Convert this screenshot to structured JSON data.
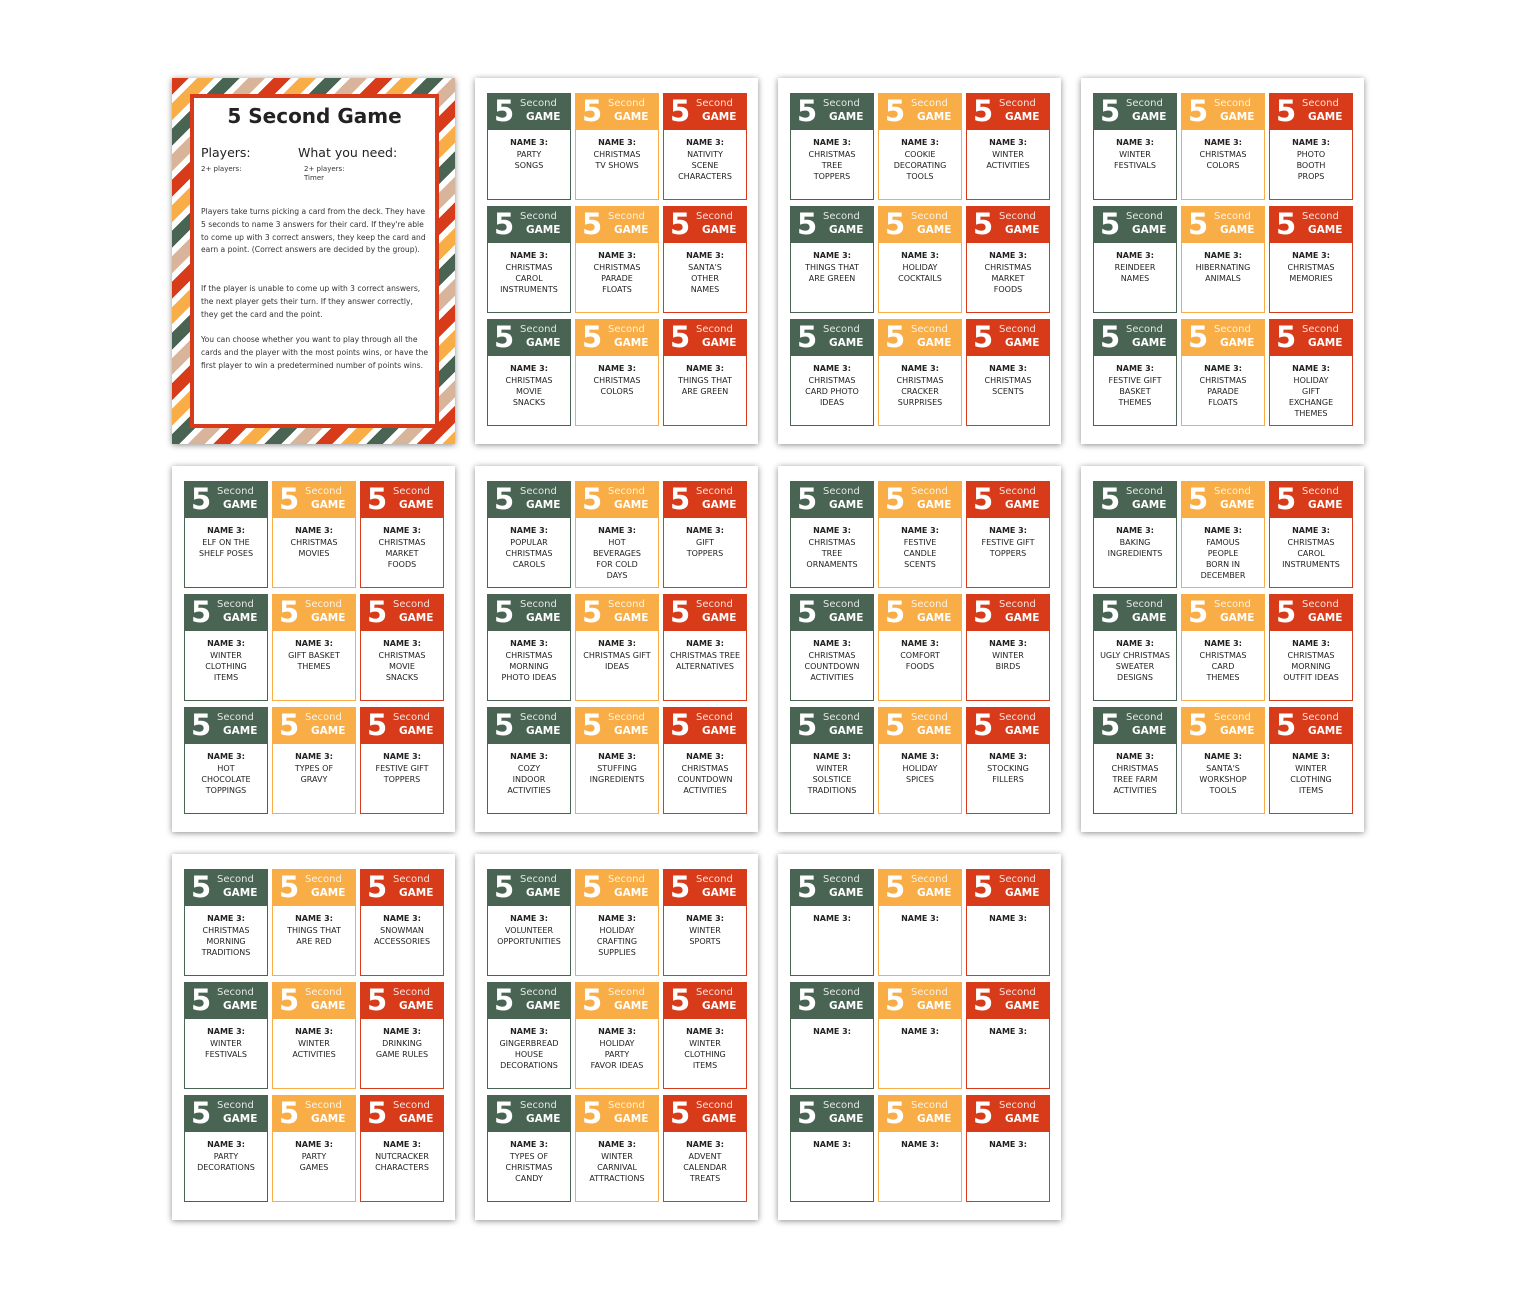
{
  "badge": {
    "number": "5",
    "word1": "Second",
    "word2": "GAME"
  },
  "rules_page": {
    "title": "5 Second Game",
    "players_label": "Players:",
    "players_value": "2+ players:",
    "need_label": "What you need:",
    "need_items": [
      "2+ players:",
      "Timer"
    ],
    "paragraphs": [
      "Players take turns picking a card from the deck. They have 5 seconds to  name 3 answers for their card. If they're able to come up with 3 correct answers, they keep the card and earn a point. (Correct answers are decided by the group).",
      "If the player is unable to come up with 3 correct answers, the next player gets their turn. If they answer correctly, they get the card and the point.",
      "You can choose whether you want to play through all the cards and the player with the most points wins, or have the first player to win a predetermined number of points wins."
    ]
  },
  "card_pages": [
    {
      "cards": [
        {
          "prompt": "NAME 3:",
          "topic": [
            "PARTY",
            "SONGS"
          ]
        },
        {
          "prompt": "NAME 3:",
          "topic": [
            "CHRISTMAS",
            "TV SHOWS"
          ]
        },
        {
          "prompt": "NAME 3:",
          "topic": [
            "NATIVITY",
            "SCENE",
            "CHARACTERS"
          ]
        },
        {
          "prompt": "NAME 3:",
          "topic": [
            "CHRISTMAS",
            "CAROL",
            "INSTRUMENTS"
          ]
        },
        {
          "prompt": "NAME 3:",
          "topic": [
            "CHRISTMAS",
            "PARADE",
            "FLOATS"
          ]
        },
        {
          "prompt": "NAME 3:",
          "topic": [
            "SANTA'S",
            "OTHER",
            "NAMES"
          ]
        },
        {
          "prompt": "NAME 3:",
          "topic": [
            "CHRISTMAS",
            "MOVIE",
            "SNACKS"
          ]
        },
        {
          "prompt": "NAME 3:",
          "topic": [
            "CHRISTMAS",
            "COLORS"
          ]
        },
        {
          "prompt": "NAME 3:",
          "topic": [
            "THINGS THAT",
            "ARE GREEN"
          ]
        }
      ]
    },
    {
      "cards": [
        {
          "prompt": "NAME 3:",
          "topic": [
            "CHRISTMAS",
            "TREE",
            "TOPPERS"
          ]
        },
        {
          "prompt": "NAME 3:",
          "topic": [
            "COOKIE",
            "DECORATING",
            "TOOLS"
          ]
        },
        {
          "prompt": "NAME 3:",
          "topic": [
            "WINTER",
            "ACTIVITIES"
          ]
        },
        {
          "prompt": "NAME 3:",
          "topic": [
            "THINGS THAT",
            "ARE GREEN"
          ]
        },
        {
          "prompt": "NAME 3:",
          "topic": [
            "HOLIDAY",
            "COCKTAILS"
          ]
        },
        {
          "prompt": "NAME 3:",
          "topic": [
            "CHRISTMAS",
            "MARKET",
            "FOODS"
          ]
        },
        {
          "prompt": "NAME 3:",
          "topic": [
            "CHRISTMAS",
            "CARD PHOTO",
            "IDEAS"
          ]
        },
        {
          "prompt": "NAME 3:",
          "topic": [
            "CHRISTMAS",
            "CRACKER",
            "SURPRISES"
          ]
        },
        {
          "prompt": "NAME 3:",
          "topic": [
            "CHRISTMAS",
            "SCENTS"
          ]
        }
      ]
    },
    {
      "cards": [
        {
          "prompt": "NAME 3:",
          "topic": [
            "WINTER",
            "FESTIVALS"
          ]
        },
        {
          "prompt": "NAME 3:",
          "topic": [
            "CHRISTMAS",
            "COLORS"
          ]
        },
        {
          "prompt": "NAME 3:",
          "topic": [
            "PHOTO",
            "BOOTH",
            "PROPS"
          ]
        },
        {
          "prompt": "NAME 3:",
          "topic": [
            "REINDEER",
            "NAMES"
          ]
        },
        {
          "prompt": "NAME 3:",
          "topic": [
            "HIBERNATING",
            "ANIMALS"
          ]
        },
        {
          "prompt": "NAME 3:",
          "topic": [
            "CHRISTMAS",
            "MEMORIES"
          ]
        },
        {
          "prompt": "NAME 3:",
          "topic": [
            "FESTIVE GIFT",
            "BASKET",
            "THEMES"
          ]
        },
        {
          "prompt": "NAME 3:",
          "topic": [
            "CHRISTMAS",
            "PARADE",
            "FLOATS"
          ]
        },
        {
          "prompt": "NAME 3:",
          "topic": [
            "HOLIDAY",
            "GIFT",
            "EXCHANGE",
            "THEMES"
          ]
        }
      ]
    },
    {
      "cards": [
        {
          "prompt": "NAME 3:",
          "topic": [
            "ELF ON THE",
            "SHELF POSES"
          ]
        },
        {
          "prompt": "NAME 3:",
          "topic": [
            "CHRISTMAS",
            "MOVIES"
          ]
        },
        {
          "prompt": "NAME 3:",
          "topic": [
            "CHRISTMAS",
            "MARKET",
            "FOODS"
          ]
        },
        {
          "prompt": "NAME 3:",
          "topic": [
            "WINTER",
            "CLOTHING",
            "ITEMS"
          ]
        },
        {
          "prompt": "NAME 3:",
          "topic": [
            "GIFT BASKET",
            "THEMES"
          ]
        },
        {
          "prompt": "NAME 3:",
          "topic": [
            "CHRISTMAS",
            "MOVIE",
            "SNACKS"
          ]
        },
        {
          "prompt": "NAME 3:",
          "topic": [
            "HOT",
            "CHOCOLATE",
            "TOPPINGS"
          ]
        },
        {
          "prompt": "NAME 3:",
          "topic": [
            "TYPES OF",
            "GRAVY"
          ]
        },
        {
          "prompt": "NAME 3:",
          "topic": [
            "FESTIVE GIFT",
            "TOPPERS"
          ]
        }
      ]
    },
    {
      "cards": [
        {
          "prompt": "NAME 3:",
          "topic": [
            "POPULAR",
            "CHRISTMAS",
            "CAROLS"
          ]
        },
        {
          "prompt": "NAME 3:",
          "topic": [
            "HOT",
            "BEVERAGES",
            "FOR COLD",
            "DAYS"
          ]
        },
        {
          "prompt": "NAME 3:",
          "topic": [
            "GIFT",
            "TOPPERS"
          ]
        },
        {
          "prompt": "NAME 3:",
          "topic": [
            "CHRISTMAS",
            "MORNING",
            "PHOTO IDEAS"
          ]
        },
        {
          "prompt": "NAME 3:",
          "topic": [
            "CHRISTMAS GIFT",
            "IDEAS"
          ]
        },
        {
          "prompt": "NAME 3:",
          "topic": [
            "CHRISTMAS TREE",
            "ALTERNATIVES"
          ]
        },
        {
          "prompt": "NAME 3:",
          "topic": [
            "COZY",
            "INDOOR",
            "ACTIVITIES"
          ]
        },
        {
          "prompt": "NAME 3:",
          "topic": [
            "STUFFING",
            "INGREDIENTS"
          ]
        },
        {
          "prompt": "NAME 3:",
          "topic": [
            "CHRISTMAS",
            "COUNTDOWN",
            "ACTIVITIES"
          ]
        }
      ]
    },
    {
      "cards": [
        {
          "prompt": "NAME 3:",
          "topic": [
            "CHRISTMAS",
            "TREE",
            "ORNAMENTS"
          ]
        },
        {
          "prompt": "NAME 3:",
          "topic": [
            "FESTIVE",
            "CANDLE",
            "SCENTS"
          ]
        },
        {
          "prompt": "NAME 3:",
          "topic": [
            "FESTIVE GIFT",
            "TOPPERS"
          ]
        },
        {
          "prompt": "NAME 3:",
          "topic": [
            "CHRISTMAS",
            "COUNTDOWN",
            "ACTIVITIES"
          ]
        },
        {
          "prompt": "NAME 3:",
          "topic": [
            "COMFORT",
            "FOODS"
          ]
        },
        {
          "prompt": "NAME 3:",
          "topic": [
            "WINTER",
            "BIRDS"
          ]
        },
        {
          "prompt": "NAME 3:",
          "topic": [
            "WINTER",
            "SOLSTICE",
            "TRADITIONS"
          ]
        },
        {
          "prompt": "NAME 3:",
          "topic": [
            "HOLIDAY",
            "SPICES"
          ]
        },
        {
          "prompt": "NAME 3:",
          "topic": [
            "STOCKING",
            "FILLERS"
          ]
        }
      ]
    },
    {
      "cards": [
        {
          "prompt": "NAME 3:",
          "topic": [
            "BAKING",
            "INGREDIENTS"
          ]
        },
        {
          "prompt": "NAME 3:",
          "topic": [
            "FAMOUS",
            "PEOPLE",
            "BORN IN",
            "DECEMBER"
          ]
        },
        {
          "prompt": "NAME 3:",
          "topic": [
            "CHRISTMAS",
            "CAROL",
            "INSTRUMENTS"
          ]
        },
        {
          "prompt": "NAME 3:",
          "topic": [
            "UGLY CHRISTMAS",
            "SWEATER",
            "DESIGNS"
          ]
        },
        {
          "prompt": "NAME 3:",
          "topic": [
            "CHRISTMAS",
            "CARD",
            "THEMES"
          ]
        },
        {
          "prompt": "NAME 3:",
          "topic": [
            "CHRISTMAS",
            "MORNING",
            "OUTFIT IDEAS"
          ]
        },
        {
          "prompt": "NAME 3:",
          "topic": [
            "CHRISTMAS",
            "TREE FARM",
            "ACTIVITIES"
          ]
        },
        {
          "prompt": "NAME 3:",
          "topic": [
            "SANTA'S",
            "WORKSHOP",
            "TOOLS"
          ]
        },
        {
          "prompt": "NAME 3:",
          "topic": [
            "WINTER",
            "CLOTHING",
            "ITEMS"
          ]
        }
      ]
    },
    {
      "cards": [
        {
          "prompt": "NAME 3:",
          "topic": [
            "CHRISTMAS",
            "MORNING",
            "TRADITIONS"
          ]
        },
        {
          "prompt": "NAME 3:",
          "topic": [
            "THINGS THAT",
            "ARE RED"
          ]
        },
        {
          "prompt": "NAME 3:",
          "topic": [
            "SNOWMAN",
            "ACCESSORIES"
          ]
        },
        {
          "prompt": "NAME 3:",
          "topic": [
            "WINTER",
            "FESTIVALS"
          ]
        },
        {
          "prompt": "NAME 3:",
          "topic": [
            "WINTER",
            "ACTIVITIES"
          ]
        },
        {
          "prompt": "NAME 3:",
          "topic": [
            "DRINKING",
            "GAME RULES"
          ]
        },
        {
          "prompt": "NAME 3:",
          "topic": [
            "PARTY",
            "DECORATIONS"
          ]
        },
        {
          "prompt": "NAME 3:",
          "topic": [
            "PARTY",
            "GAMES"
          ]
        },
        {
          "prompt": "NAME 3:",
          "topic": [
            "NUTCRACKER",
            "CHARACTERS"
          ]
        }
      ]
    },
    {
      "cards": [
        {
          "prompt": "NAME 3:",
          "topic": [
            "VOLUNTEER",
            "OPPORTUNITIES"
          ]
        },
        {
          "prompt": "NAME 3:",
          "topic": [
            "HOLIDAY",
            "CRAFTING",
            "SUPPLIES"
          ]
        },
        {
          "prompt": "NAME 3:",
          "topic": [
            "WINTER",
            "SPORTS"
          ]
        },
        {
          "prompt": "NAME 3:",
          "topic": [
            "GINGERBREAD",
            "HOUSE",
            "DECORATIONS"
          ]
        },
        {
          "prompt": "NAME 3:",
          "topic": [
            "HOLIDAY",
            "PARTY",
            "FAVOR IDEAS"
          ]
        },
        {
          "prompt": "NAME 3:",
          "topic": [
            "WINTER",
            "CLOTHING",
            "ITEMS"
          ]
        },
        {
          "prompt": "NAME 3:",
          "topic": [
            "TYPES OF",
            "CHRISTMAS",
            "CANDY"
          ]
        },
        {
          "prompt": "NAME 3:",
          "topic": [
            "WINTER",
            "CARNIVAL",
            "ATTRACTIONS"
          ]
        },
        {
          "prompt": "NAME 3:",
          "topic": [
            "ADVENT",
            "CALENDAR",
            "TREATS"
          ]
        }
      ]
    },
    {
      "cards": [
        {
          "prompt": "NAME 3:",
          "topic": []
        },
        {
          "prompt": "NAME 3:",
          "topic": []
        },
        {
          "prompt": "NAME 3:",
          "topic": []
        },
        {
          "prompt": "NAME 3:",
          "topic": []
        },
        {
          "prompt": "NAME 3:",
          "topic": []
        },
        {
          "prompt": "NAME 3:",
          "topic": []
        },
        {
          "prompt": "NAME 3:",
          "topic": []
        },
        {
          "prompt": "NAME 3:",
          "topic": []
        },
        {
          "prompt": "NAME 3:",
          "topic": []
        }
      ]
    }
  ]
}
